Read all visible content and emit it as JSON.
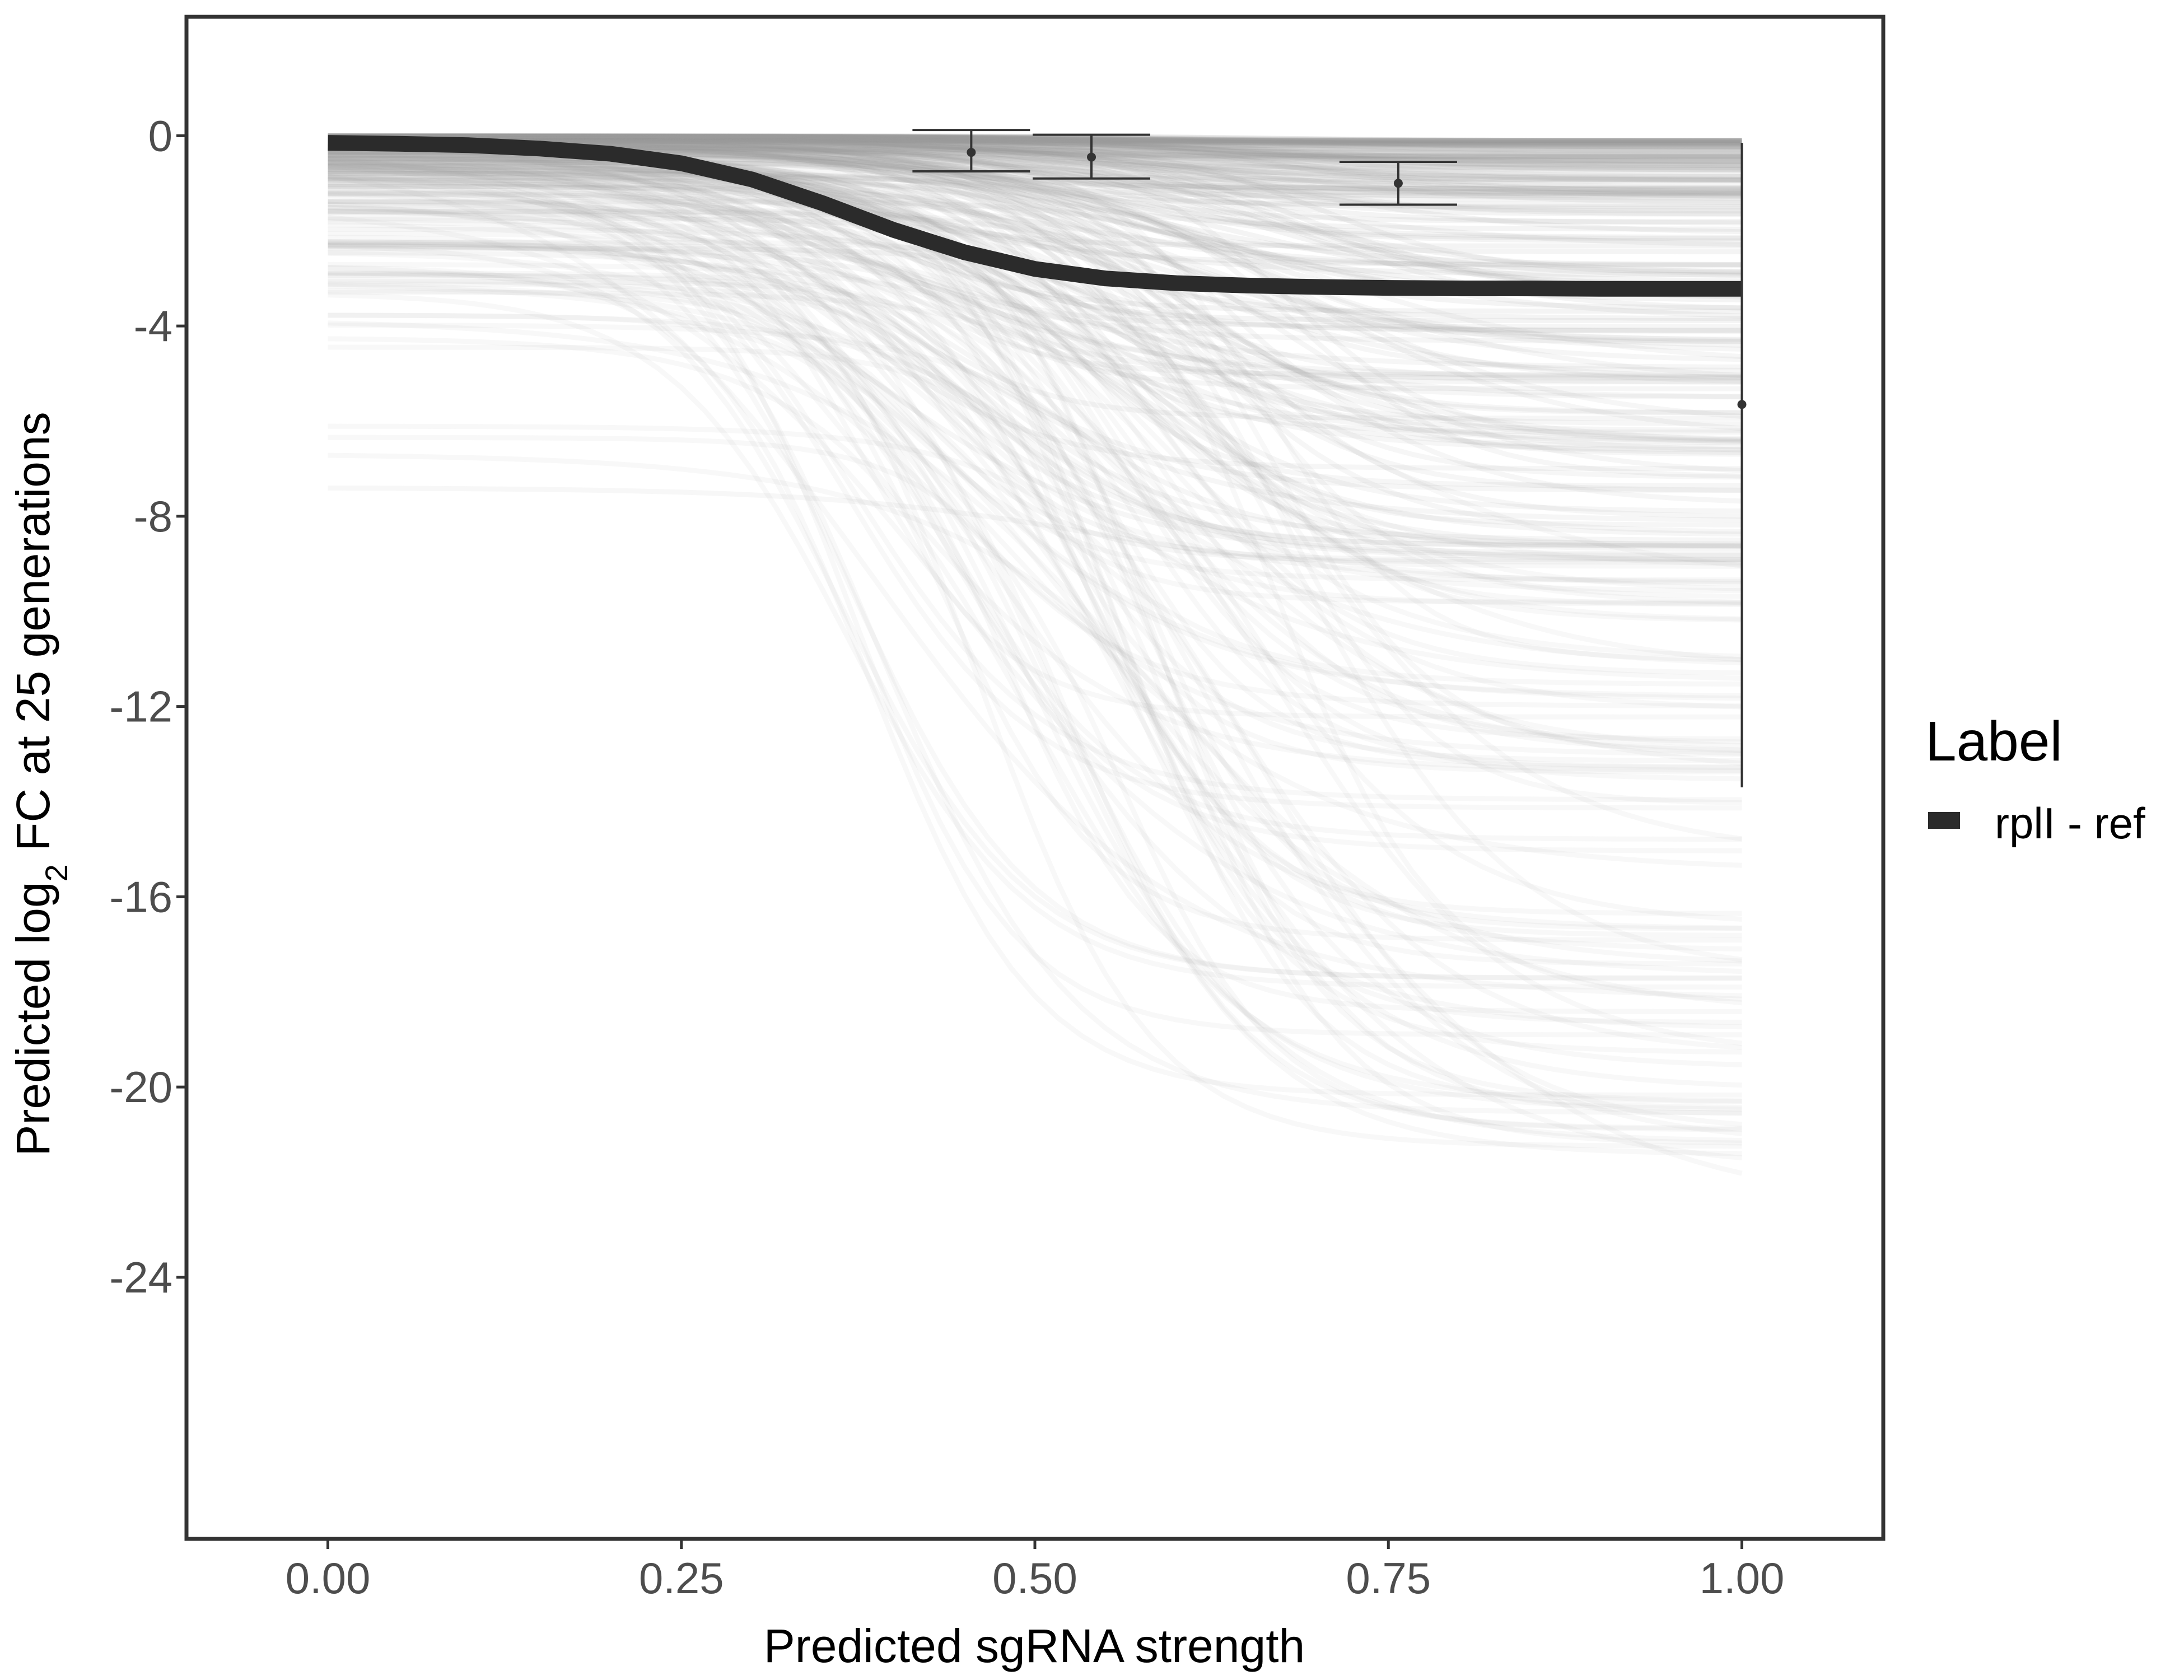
{
  "chart_data": {
    "type": "line",
    "title": "",
    "xlabel": "Predicted sgRNA strength",
    "ylabel": {
      "prefix": "Predicted  log",
      "subscript": "2",
      "suffix": " FC at 25 generations"
    },
    "xlim": [
      -0.1,
      1.1
    ],
    "ylim": [
      -29.5,
      2.5
    ],
    "x_ticks": [
      0,
      0.25,
      0.5,
      0.75,
      1
    ],
    "x_tick_labels": [
      "0.00",
      "0.25",
      "0.50",
      "0.75",
      "1.00"
    ],
    "y_ticks": [
      0,
      -4,
      -8,
      -12,
      -16,
      -20,
      -24
    ],
    "y_tick_labels": [
      "0",
      "-4",
      "-8",
      "-12",
      "-16",
      "-20",
      "-24"
    ],
    "grid": false,
    "legend": {
      "title": "Label",
      "position": "right",
      "entries": [
        {
          "label": "rplI - ref",
          "color": "#2b2b2b"
        }
      ]
    },
    "main_curve": {
      "name": "rplI - ref",
      "color": "#2b2b2b",
      "x": [
        0,
        0.05,
        0.1,
        0.15,
        0.2,
        0.25,
        0.3,
        0.35,
        0.4,
        0.45,
        0.5,
        0.55,
        0.6,
        0.65,
        0.7,
        0.75,
        0.8,
        0.85,
        0.9,
        0.95,
        1.0
      ],
      "y": [
        -0.15,
        -0.17,
        -0.2,
        -0.27,
        -0.38,
        -0.58,
        -0.92,
        -1.42,
        -1.98,
        -2.45,
        -2.8,
        -3.0,
        -3.1,
        -3.15,
        -3.18,
        -3.2,
        -3.21,
        -3.21,
        -3.22,
        -3.22,
        -3.22
      ]
    },
    "background_curves": {
      "description_color": "#9e9e9e",
      "count": 300,
      "y_at_0_range": [
        -0.1,
        -5.2
      ],
      "y_at_1_range": [
        -0.15,
        -22.3
      ],
      "outlier_y_at_0": -7.4
    },
    "error_bars": [
      {
        "x": 0.455,
        "y": -0.35,
        "ymin": -0.75,
        "ymax": 0.12
      },
      {
        "x": 0.54,
        "y": -0.45,
        "ymin": -0.9,
        "ymax": 0.02
      },
      {
        "x": 0.757,
        "y": -1.0,
        "ymin": -1.45,
        "ymax": -0.55
      },
      {
        "x": 1.0,
        "y": -5.65,
        "ymin": -13.7,
        "ymax": -0.15
      }
    ]
  }
}
